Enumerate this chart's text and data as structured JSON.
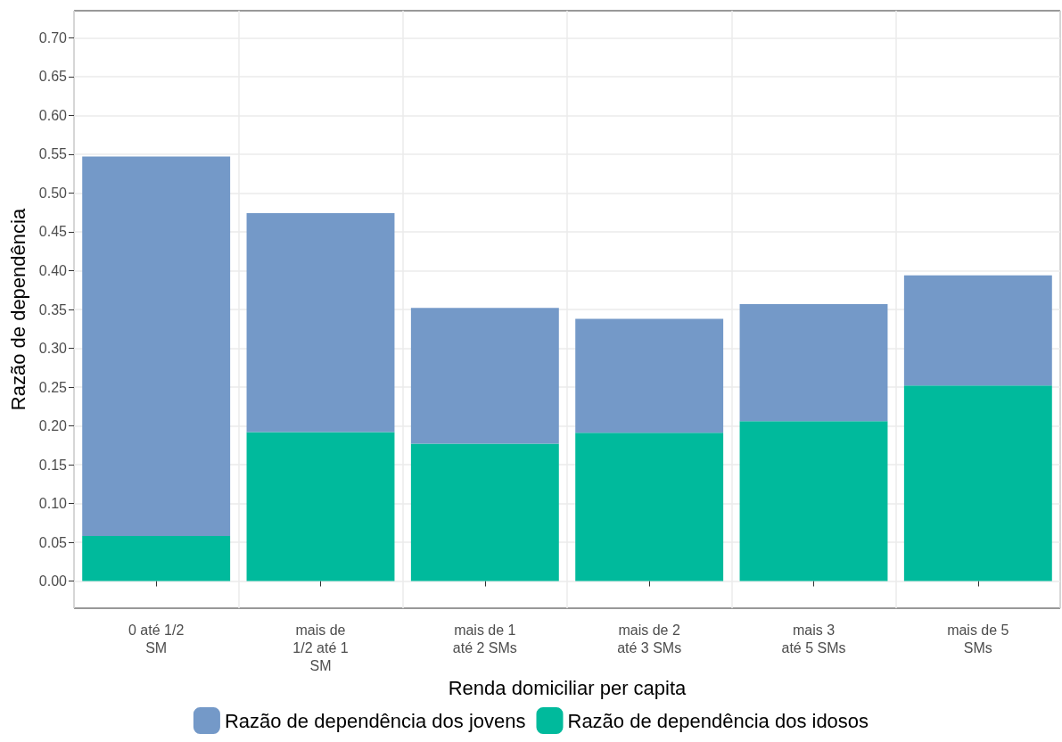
{
  "chart_data": {
    "type": "bar",
    "stacked": true,
    "xlabel": "Renda domiciliar per capita",
    "ylabel": "Razão de dependência",
    "categories": [
      "0 até 1/2\nSM",
      "mais de\n1/2 até 1\nSM",
      "mais de 1\naté 2 SMs",
      "mais de 2\naté 3 SMs",
      "mais 3\naté 5 SMs",
      "mais de 5\nSMs"
    ],
    "series": [
      {
        "name": "Razão de dependência dos idosos",
        "color": "#00ba9c",
        "values": [
          0.058,
          0.192,
          0.177,
          0.191,
          0.206,
          0.252
        ]
      },
      {
        "name": "Razão de dependência dos jovens",
        "color": "#7499c8",
        "values": [
          0.489,
          0.282,
          0.175,
          0.147,
          0.151,
          0.142
        ]
      }
    ],
    "ylim": [
      -0.035,
      0.735
    ],
    "yticks": [
      {
        "value": 0,
        "label": "0.00"
      },
      {
        "value": 0.05,
        "label": "0.05"
      },
      {
        "value": 0.1,
        "label": "0.10"
      },
      {
        "value": 0.15,
        "label": "0.15"
      },
      {
        "value": 0.2,
        "label": "0.20"
      },
      {
        "value": 0.25,
        "label": "0.25"
      },
      {
        "value": 0.3,
        "label": "0.30"
      },
      {
        "value": 0.35,
        "label": "0.35"
      },
      {
        "value": 0.4,
        "label": "0.40"
      },
      {
        "value": 0.45,
        "label": "0.45"
      },
      {
        "value": 0.5,
        "label": "0.50"
      },
      {
        "value": 0.55,
        "label": "0.55"
      },
      {
        "value": 0.6,
        "label": "0.60"
      },
      {
        "value": 0.65,
        "label": "0.65"
      },
      {
        "value": 0.7,
        "label": "0.70"
      }
    ],
    "grid": true,
    "legend": "bottom"
  }
}
